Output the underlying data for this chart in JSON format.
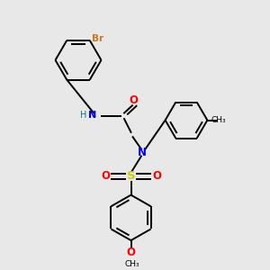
{
  "bg_color": "#e8e8e8",
  "bond_color": "#000000",
  "N_color": "#0000ff",
  "O_color": "#ff0000",
  "S_color": "#cccc00",
  "Br_color": "#cc7722",
  "H_color": "#008080",
  "line_width": 1.4,
  "fig_size": [
    3.0,
    3.0
  ],
  "dpi": 100,
  "xlim": [
    0,
    10
  ],
  "ylim": [
    0,
    10
  ]
}
